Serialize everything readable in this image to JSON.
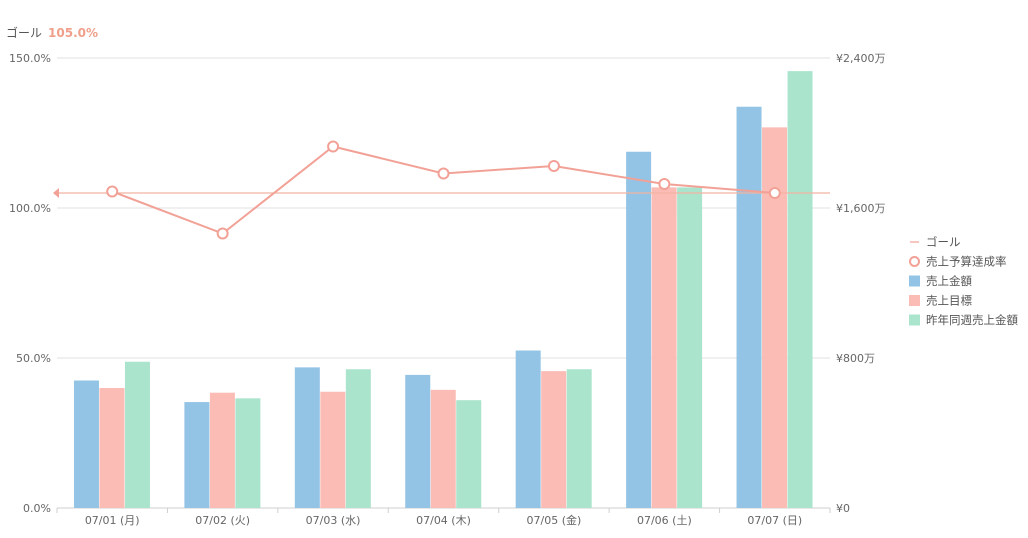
{
  "header": {
    "goal_label": "ゴール",
    "goal_value": "105.0%"
  },
  "chart_data": {
    "type": "bar",
    "categories": [
      "07/01 (月)",
      "07/02 (火)",
      "07/03 (水)",
      "07/04 (木)",
      "07/05 (金)",
      "07/06 (土)",
      "07/07 (日)"
    ],
    "left_axis": {
      "ticks": [
        "0.0%",
        "50.0%",
        "100.0%",
        "150.0%"
      ],
      "range": [
        0,
        150
      ],
      "unit": "%"
    },
    "right_axis": {
      "ticks": [
        "¥0",
        "¥800万",
        "¥1,600万",
        "¥2,400万"
      ],
      "range": [
        0,
        2400
      ],
      "unit": "万円"
    },
    "goal": {
      "name": "ゴール",
      "value": 105.0
    },
    "line_series": {
      "name": "売上予算達成率",
      "axis": "left",
      "values": [
        105.5,
        91.5,
        120.5,
        111.5,
        114.0,
        108.0,
        105.0
      ],
      "color": "#f2a196"
    },
    "series": [
      {
        "name": "売上金額",
        "axis": "right",
        "values": [
          680,
          565,
          750,
          710,
          840,
          1900,
          2140
        ],
        "color": "#93c4e5"
      },
      {
        "name": "売上目標",
        "axis": "right",
        "values": [
          640,
          615,
          620,
          630,
          730,
          1710,
          2030
        ],
        "color": "#fbbcb5"
      },
      {
        "name": "昨年同週売上金額",
        "axis": "right",
        "values": [
          780,
          585,
          740,
          575,
          740,
          1710,
          2330
        ],
        "color": "#abe4cc"
      }
    ],
    "legend": [
      "ゴール",
      "売上予算達成率",
      "売上金額",
      "売上目標",
      "昨年同週売上金額"
    ],
    "legend_position": "right",
    "grid": true
  }
}
